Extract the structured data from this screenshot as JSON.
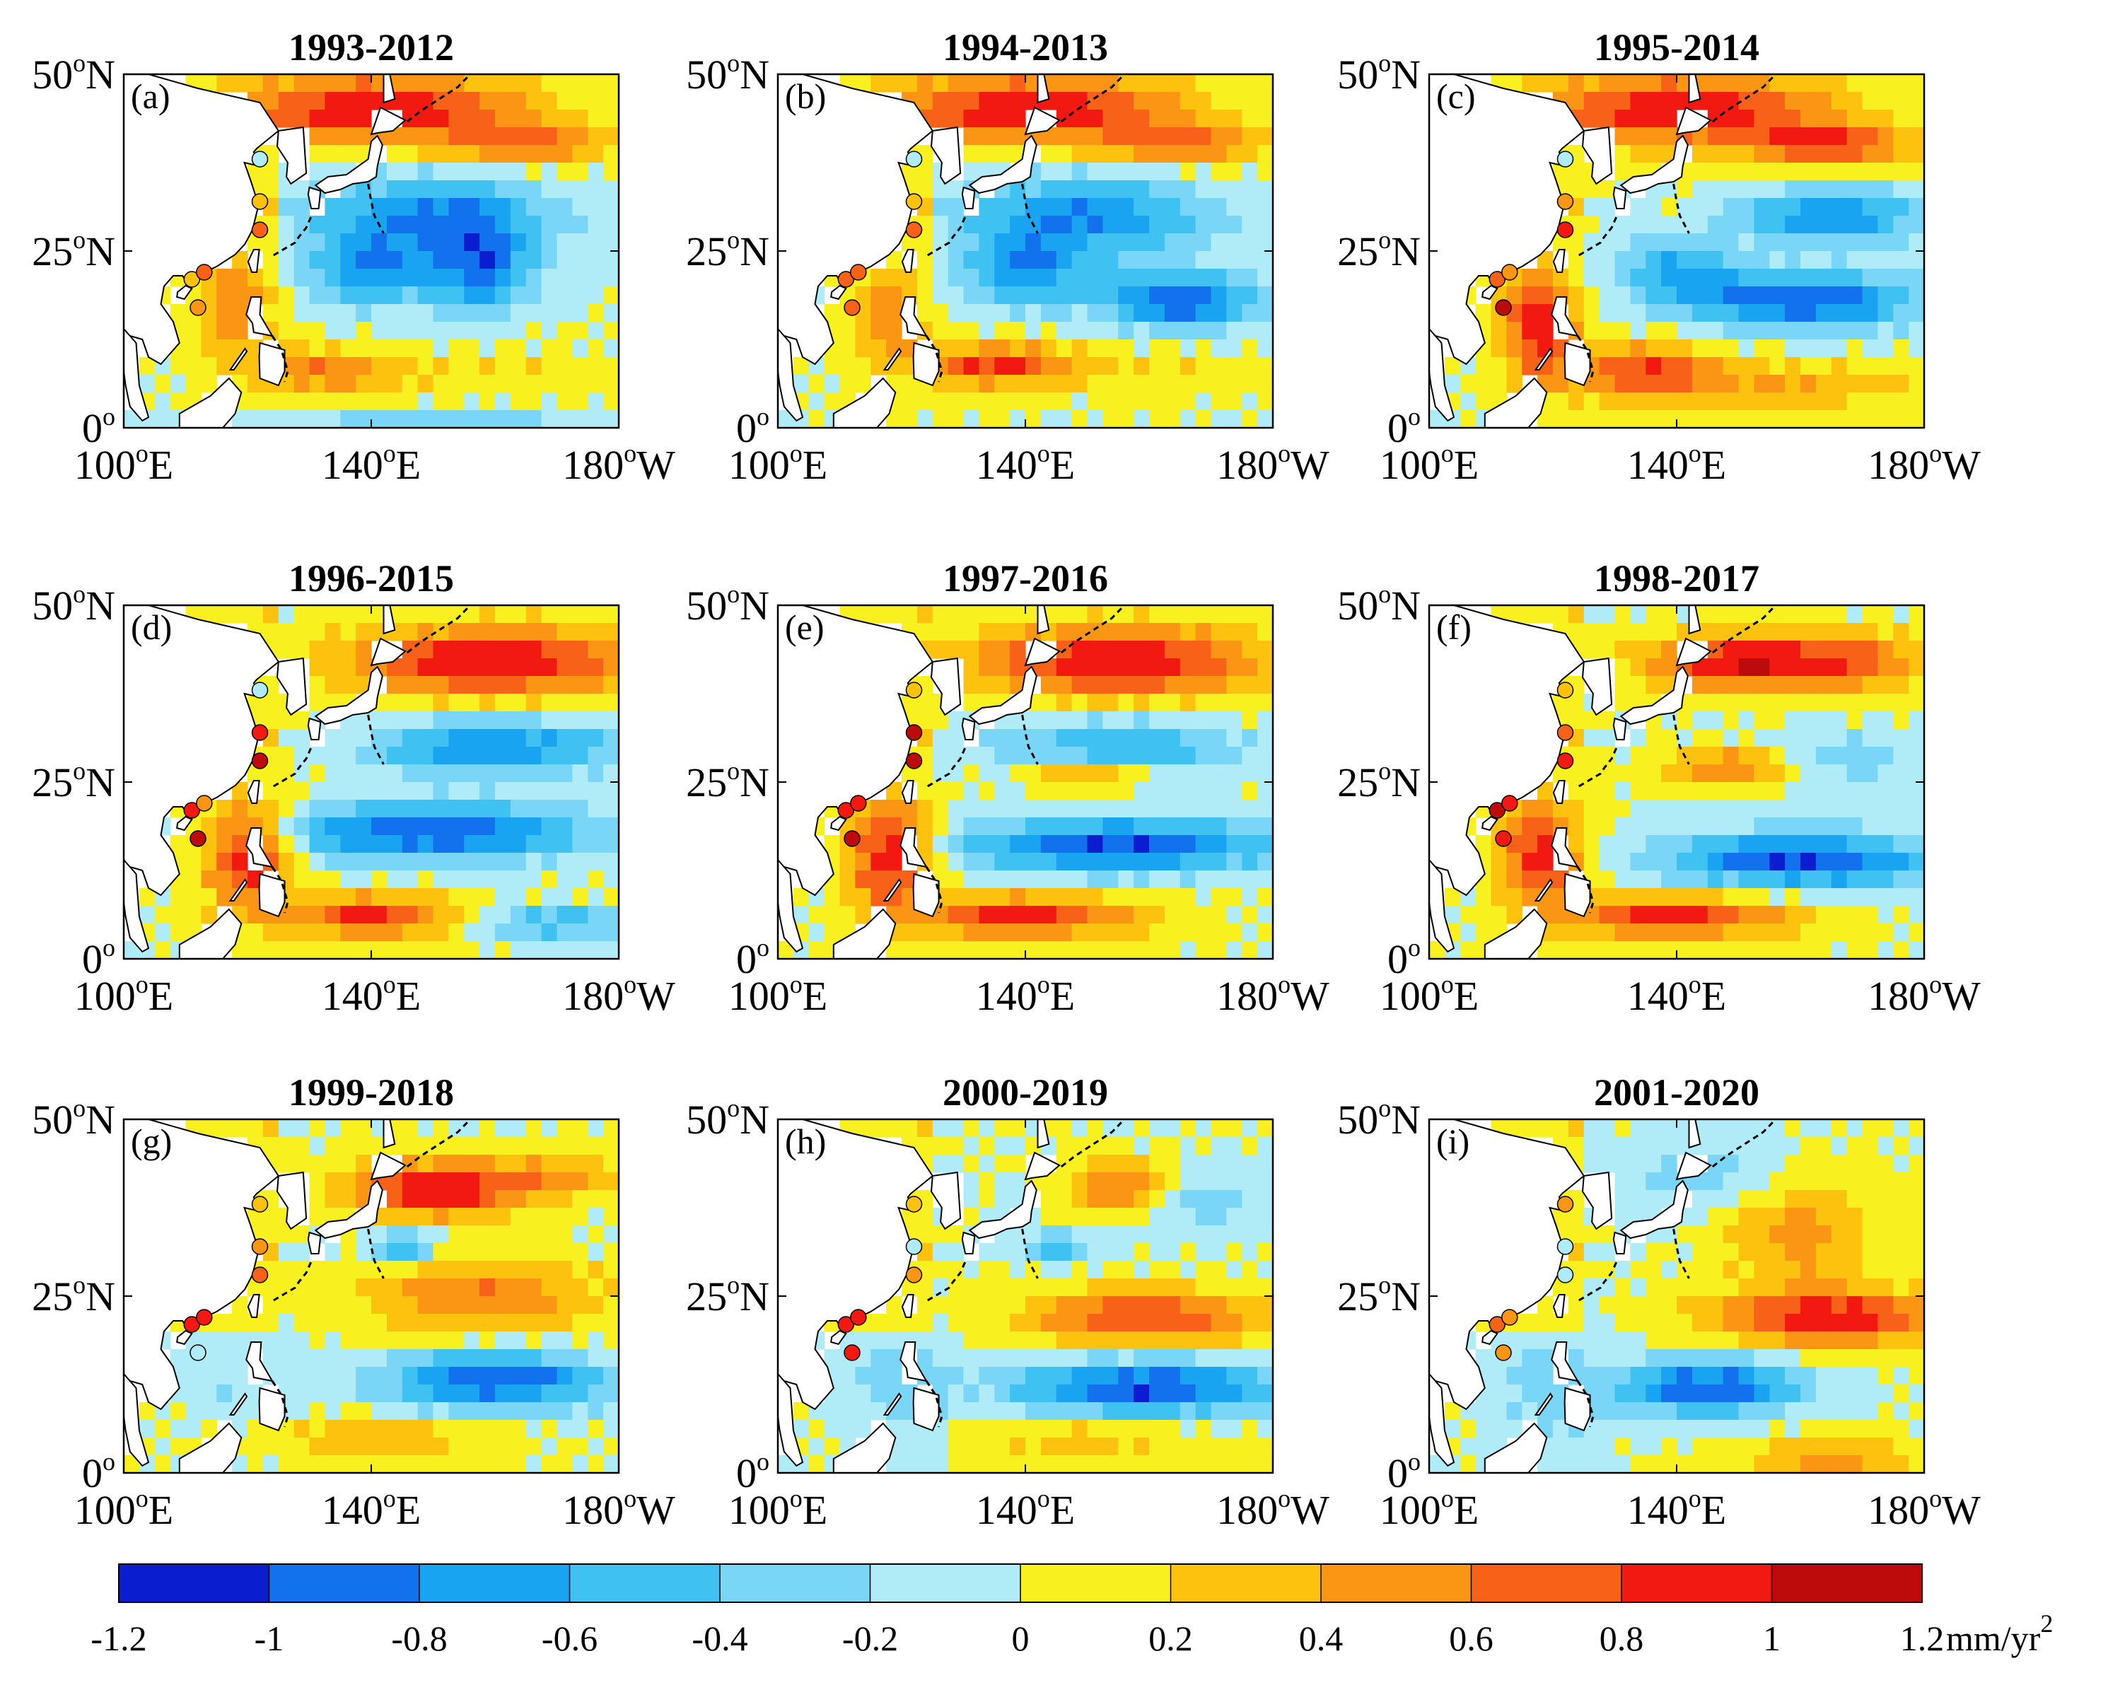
{
  "chart_data": {
    "type": "heatmap",
    "figure_title": "",
    "colorbar": {
      "ticks": [
        "-1.2",
        "-1",
        "-0.8",
        "-0.6",
        "-0.4",
        "-0.2",
        "0",
        "0.2",
        "0.4",
        "0.6",
        "0.8",
        "1",
        "1.2"
      ],
      "tick_values": [
        -1.2,
        -1.0,
        -0.8,
        -0.6,
        -0.4,
        -0.2,
        0,
        0.2,
        0.4,
        0.6,
        0.8,
        1.0,
        1.2
      ],
      "unit": "mm/yr",
      "unit_exp": "2",
      "colors": [
        "#0a1ed0",
        "#1272ee",
        "#18a4f0",
        "#3fc2f2",
        "#7ad6f6",
        "#b0ecf8",
        "#f9f020",
        "#fcc20e",
        "#fb9514",
        "#f76218",
        "#f21a10",
        "#bd0a0a"
      ]
    },
    "axes": {
      "xlim": [
        100,
        180
      ],
      "ylim": [
        0,
        50
      ],
      "x_ticks": [
        {
          "value": 100,
          "num": "100",
          "sup": "o",
          "suffix": "E"
        },
        {
          "value": 140,
          "num": "140",
          "sup": "o",
          "suffix": "E"
        },
        {
          "value": 180,
          "num": "180",
          "sup": "o",
          "suffix": "W"
        }
      ],
      "y_ticks": [
        {
          "value": 50,
          "num": "50",
          "sup": "o",
          "suffix": "N"
        },
        {
          "value": 25,
          "num": "25",
          "sup": "o",
          "suffix": "N"
        },
        {
          "value": 0,
          "num": "0",
          "sup": "o",
          "suffix": ""
        }
      ]
    },
    "panels": [
      {
        "label": "(a)",
        "title": "1993-2012",
        "features": [
          [
            140,
            45,
            25,
            5,
            1.0
          ],
          [
            165,
            40,
            13,
            3,
            0.6
          ],
          [
            150,
            30,
            20,
            6,
            -0.8
          ],
          [
            140,
            22,
            10,
            5,
            -0.7
          ],
          [
            158,
            22,
            8,
            6,
            -0.8
          ],
          [
            118,
            18,
            6,
            8,
            0.6
          ],
          [
            132,
            8,
            12,
            3,
            0.6
          ],
          [
            160,
            8,
            20,
            3,
            0.2
          ],
          [
            150,
            0,
            30,
            2,
            -0.4
          ]
        ],
        "stations": [
          [
            122,
            38,
            -0.2
          ],
          [
            122,
            32,
            0.2
          ],
          [
            122,
            28,
            0.6
          ],
          [
            111,
            21,
            0.2
          ],
          [
            113,
            22,
            0.6
          ],
          [
            112,
            17,
            0.4
          ]
        ]
      },
      {
        "label": "(b)",
        "title": "1994-2013",
        "features": [
          [
            140,
            45,
            25,
            5,
            1.0
          ],
          [
            165,
            40,
            13,
            3,
            0.6
          ],
          [
            150,
            30,
            20,
            6,
            -0.8
          ],
          [
            140,
            22,
            10,
            5,
            -0.7
          ],
          [
            165,
            18,
            12,
            4,
            -1.0
          ],
          [
            118,
            16,
            6,
            7,
            0.6
          ],
          [
            135,
            9,
            12,
            3,
            0.8
          ],
          [
            160,
            8,
            20,
            3,
            0.2
          ]
        ],
        "stations": [
          [
            122,
            38,
            -0.2
          ],
          [
            122,
            32,
            0.2
          ],
          [
            122,
            28,
            0.6
          ],
          [
            111,
            21,
            0.6
          ],
          [
            113,
            22,
            0.6
          ],
          [
            112,
            17,
            0.6
          ]
        ]
      },
      {
        "label": "(c)",
        "title": "1995-2014",
        "features": [
          [
            140,
            45,
            25,
            5,
            1.0
          ],
          [
            165,
            40,
            13,
            3,
            0.8
          ],
          [
            165,
            30,
            15,
            4,
            -0.8
          ],
          [
            160,
            18,
            20,
            4,
            -1.0
          ],
          [
            140,
            23,
            10,
            4,
            -0.6
          ],
          [
            118,
            15,
            6,
            8,
            1.0
          ],
          [
            135,
            8,
            12,
            4,
            0.8
          ],
          [
            160,
            6,
            20,
            3,
            0.4
          ]
        ],
        "stations": [
          [
            122,
            38,
            -0.2
          ],
          [
            122,
            32,
            0.4
          ],
          [
            122,
            28,
            0.8
          ],
          [
            111,
            21,
            0.6
          ],
          [
            113,
            22,
            0.4
          ],
          [
            112,
            17,
            1.0
          ]
        ]
      },
      {
        "label": "(d)",
        "title": "1996-2015",
        "features": [
          [
            160,
            42,
            25,
            5,
            1.0
          ],
          [
            160,
            30,
            20,
            4,
            -0.8
          ],
          [
            150,
            18,
            25,
            4,
            -1.0
          ],
          [
            120,
            15,
            7,
            8,
            1.0
          ],
          [
            140,
            6,
            14,
            3,
            0.9
          ],
          [
            170,
            5,
            15,
            2,
            -0.6
          ]
        ],
        "stations": [
          [
            122,
            38,
            -0.2
          ],
          [
            122,
            32,
            0.8
          ],
          [
            122,
            28,
            1.0
          ],
          [
            111,
            21,
            0.8
          ],
          [
            113,
            22,
            0.4
          ],
          [
            112,
            17,
            1.0
          ]
        ]
      },
      {
        "label": "(e)",
        "title": "1997-2016",
        "features": [
          [
            155,
            42,
            25,
            5,
            1.0
          ],
          [
            155,
            30,
            20,
            4,
            -0.6
          ],
          [
            150,
            26,
            10,
            2,
            0.6
          ],
          [
            155,
            16,
            25,
            4,
            -1.0
          ],
          [
            118,
            15,
            7,
            8,
            1.0
          ],
          [
            140,
            6,
            18,
            3,
            0.9
          ]
        ],
        "stations": [
          [
            122,
            38,
            0.2
          ],
          [
            122,
            32,
            1.0
          ],
          [
            122,
            28,
            1.0
          ],
          [
            111,
            21,
            0.8
          ],
          [
            113,
            22,
            0.8
          ],
          [
            112,
            17,
            1.0
          ]
        ]
      },
      {
        "label": "(f)",
        "title": "1998-2017",
        "features": [
          [
            150,
            42,
            15,
            4,
            1.0
          ],
          [
            170,
            42,
            12,
            4,
            0.6
          ],
          [
            150,
            27,
            12,
            3,
            0.6
          ],
          [
            165,
            28,
            12,
            4,
            -0.4
          ],
          [
            160,
            14,
            22,
            4,
            -1.0
          ],
          [
            118,
            15,
            7,
            8,
            0.9
          ],
          [
            140,
            6,
            18,
            3,
            0.9
          ]
        ],
        "stations": [
          [
            122,
            38,
            0.2
          ],
          [
            122,
            32,
            0.6
          ],
          [
            122,
            28,
            0.8
          ],
          [
            111,
            21,
            1.0
          ],
          [
            113,
            22,
            0.8
          ],
          [
            112,
            17,
            0.8
          ]
        ]
      },
      {
        "label": "(g)",
        "title": "1999-2018",
        "features": [
          [
            150,
            40,
            15,
            4,
            1.0
          ],
          [
            170,
            42,
            12,
            3,
            0.4
          ],
          [
            158,
            25,
            20,
            5,
            0.6
          ],
          [
            145,
            32,
            5,
            2,
            -0.8
          ],
          [
            160,
            13,
            18,
            4,
            -1.0
          ],
          [
            120,
            12,
            8,
            8,
            -0.2
          ],
          [
            140,
            5,
            18,
            3,
            0.4
          ]
        ],
        "stations": [
          [
            122,
            38,
            0.2
          ],
          [
            122,
            32,
            0.4
          ],
          [
            122,
            28,
            0.6
          ],
          [
            111,
            21,
            0.8
          ],
          [
            113,
            22,
            0.8
          ],
          [
            112,
            17,
            -0.2
          ]
        ]
      },
      {
        "label": "(h)",
        "title": "2000-2019",
        "features": [
          [
            155,
            40,
            8,
            4,
            0.8
          ],
          [
            165,
            38,
            15,
            5,
            -0.3
          ],
          [
            160,
            22,
            20,
            4,
            0.8
          ],
          [
            160,
            12,
            22,
            4,
            -1.0
          ],
          [
            120,
            12,
            8,
            8,
            -0.3
          ],
          [
            145,
            32,
            5,
            2,
            -0.6
          ],
          [
            150,
            5,
            20,
            3,
            0.3
          ]
        ],
        "stations": [
          [
            122,
            38,
            0.2
          ],
          [
            122,
            32,
            -0.2
          ],
          [
            122,
            28,
            0.4
          ],
          [
            111,
            21,
            0.8
          ],
          [
            113,
            22,
            0.8
          ],
          [
            112,
            17,
            0.8
          ]
        ]
      },
      {
        "label": "(i)",
        "title": "2001-2020",
        "features": [
          [
            160,
            34,
            12,
            8,
            0.5
          ],
          [
            165,
            22,
            20,
            4,
            0.9
          ],
          [
            145,
            12,
            15,
            4,
            -1.0
          ],
          [
            120,
            12,
            8,
            10,
            -0.3
          ],
          [
            165,
            2,
            15,
            3,
            0.5
          ],
          [
            145,
            42,
            15,
            6,
            -0.3
          ]
        ],
        "stations": [
          [
            122,
            38,
            0.4
          ],
          [
            122,
            32,
            -0.2
          ],
          [
            122,
            28,
            -0.2
          ],
          [
            111,
            21,
            0.6
          ],
          [
            113,
            22,
            0.4
          ],
          [
            112,
            17,
            0.4
          ]
        ]
      }
    ]
  }
}
